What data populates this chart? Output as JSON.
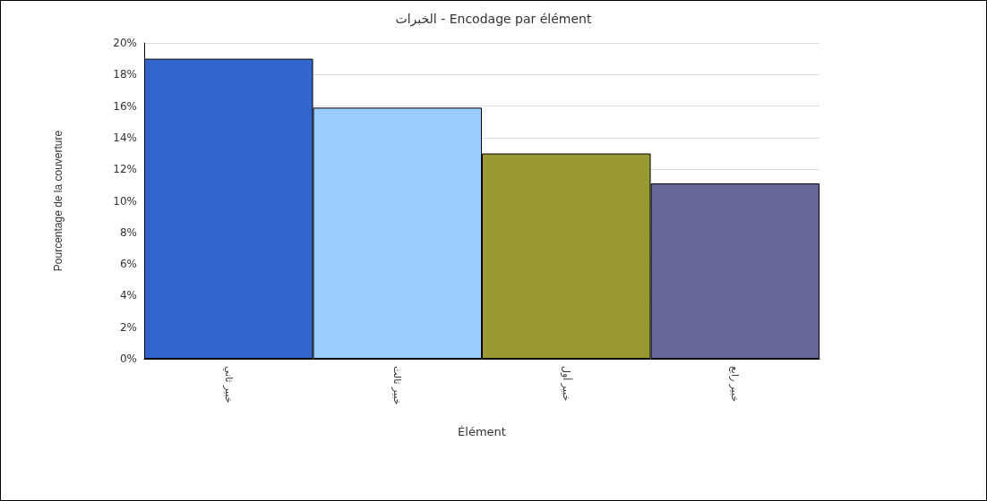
{
  "chart_data": {
    "type": "bar",
    "title": "الخبرات - Encodage par élément",
    "xlabel": "Élément",
    "ylabel": "Pourcentage de la couverture",
    "categories": [
      "خبير ثاني",
      "خبير ثالث",
      "خبير أول",
      "خبير رابع"
    ],
    "values": [
      19.0,
      15.9,
      13.0,
      11.1
    ],
    "colors": [
      "#3366cc",
      "#99ccff",
      "#999933",
      "#666699"
    ],
    "ylim": [
      0,
      20
    ],
    "yticks": [
      {
        "value": 0,
        "label": "0%"
      },
      {
        "value": 2,
        "label": "2%"
      },
      {
        "value": 4,
        "label": "4%"
      },
      {
        "value": 6,
        "label": "6%"
      },
      {
        "value": 8,
        "label": "8%"
      },
      {
        "value": 10,
        "label": "10%"
      },
      {
        "value": 12,
        "label": "12%"
      },
      {
        "value": 14,
        "label": "14%"
      },
      {
        "value": 16,
        "label": "16%"
      },
      {
        "value": 18,
        "label": "18%"
      },
      {
        "value": 20,
        "label": "20%"
      }
    ],
    "grid": "y"
  }
}
